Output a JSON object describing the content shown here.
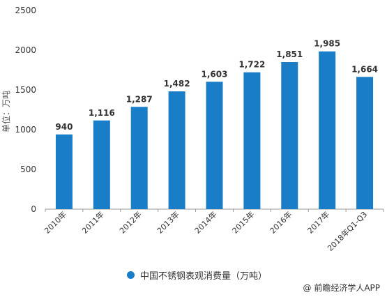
{
  "chart_data": {
    "type": "bar",
    "categories": [
      "2010年",
      "2011年",
      "2012年",
      "2013年",
      "2014年",
      "2015年",
      "2016年",
      "2017年",
      "2018年Q1-Q3"
    ],
    "series": [
      {
        "name": "中国不锈钢表观消费量（万吨）",
        "values": [
          940,
          1116,
          1287,
          1482,
          1603,
          1722,
          1851,
          1985,
          1664
        ]
      }
    ],
    "data_labels": [
      "940",
      "1,116",
      "1,287",
      "1,482",
      "1,603",
      "1,722",
      "1,851",
      "1,985",
      "1,664"
    ],
    "ylabel": "单位：万吨",
    "ylim": [
      0,
      2500
    ],
    "yticks": [
      0,
      500,
      1000,
      1500,
      2000,
      2500
    ],
    "grid": false,
    "legend_position": "bottom-center",
    "bar_color": "#1a7dc8"
  },
  "legend": {
    "label": "中国不锈钢表观消费量（万吨）"
  },
  "credit": {
    "icon": "at-sign-icon",
    "text": "@ 前瞻经济学人APP"
  }
}
